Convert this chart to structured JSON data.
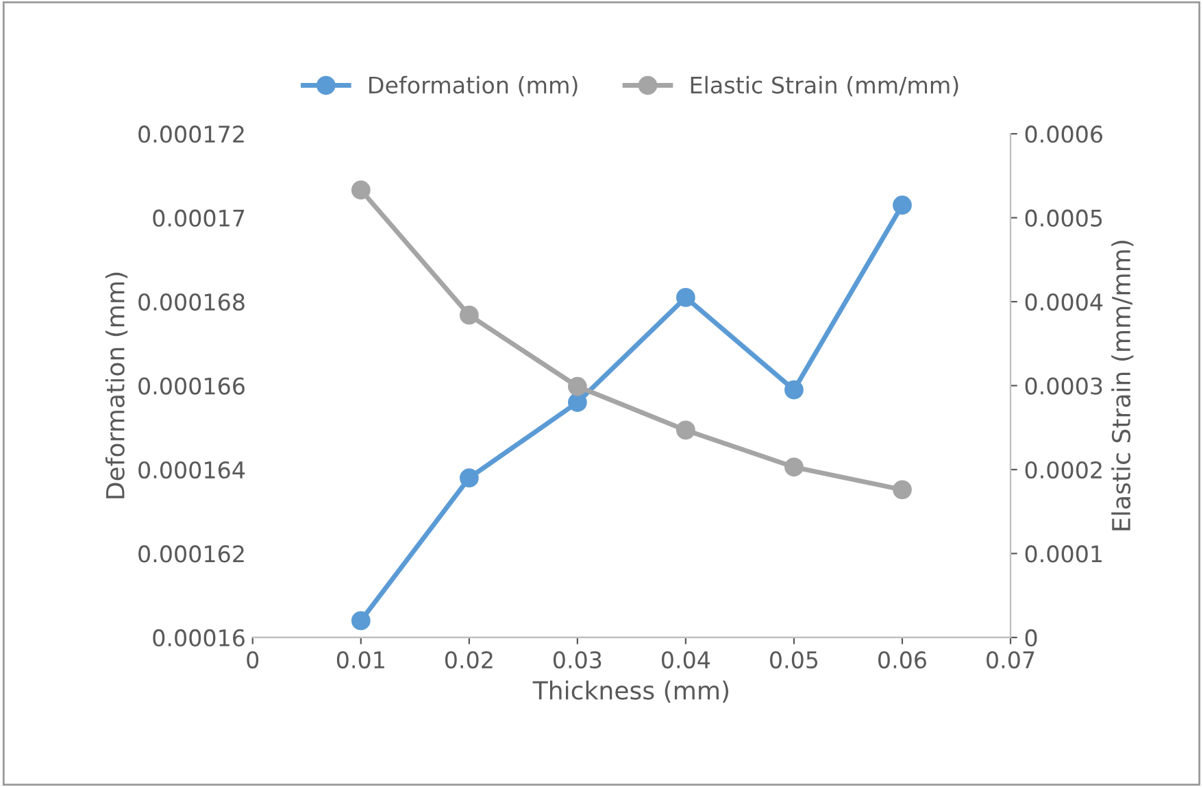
{
  "chart_data": {
    "type": "line",
    "xlabel": "Thickness (mm)",
    "ylabel": "Deformation (mm)",
    "y2label": "Elastic Strain (mm/mm)",
    "x": [
      0.01,
      0.02,
      0.03,
      0.04,
      0.05,
      0.06
    ],
    "series": [
      {
        "name": "Deformation (mm)",
        "color": "#5b9bd5",
        "values": [
          0.0001604,
          0.0001638,
          0.0001656,
          0.0001681,
          0.0001659,
          0.0001703
        ]
      },
      {
        "name": "Elastic Strain (mm/mm)",
        "color": "#a5a5a5",
        "axis": "y2",
        "values": [
          0.000533,
          0.000384,
          0.000299,
          0.000247,
          0.000203,
          0.000176
        ]
      }
    ],
    "xlim": [
      0,
      0.07
    ],
    "xticks": [
      0,
      0.01,
      0.02,
      0.03,
      0.04,
      0.05,
      0.06,
      0.07
    ],
    "ylim": [
      0.00016,
      0.000172
    ],
    "yticks": [
      0.00016,
      0.000162,
      0.000164,
      0.000166,
      0.000168,
      0.00017,
      0.000172
    ],
    "y2lim": [
      0,
      0.0006
    ],
    "y2ticks": [
      0,
      0.0001,
      0.0002,
      0.0003,
      0.0004,
      0.0005,
      0.0006
    ],
    "legend": "top",
    "marker": "circle",
    "line_style": "solid",
    "grid": false
  }
}
